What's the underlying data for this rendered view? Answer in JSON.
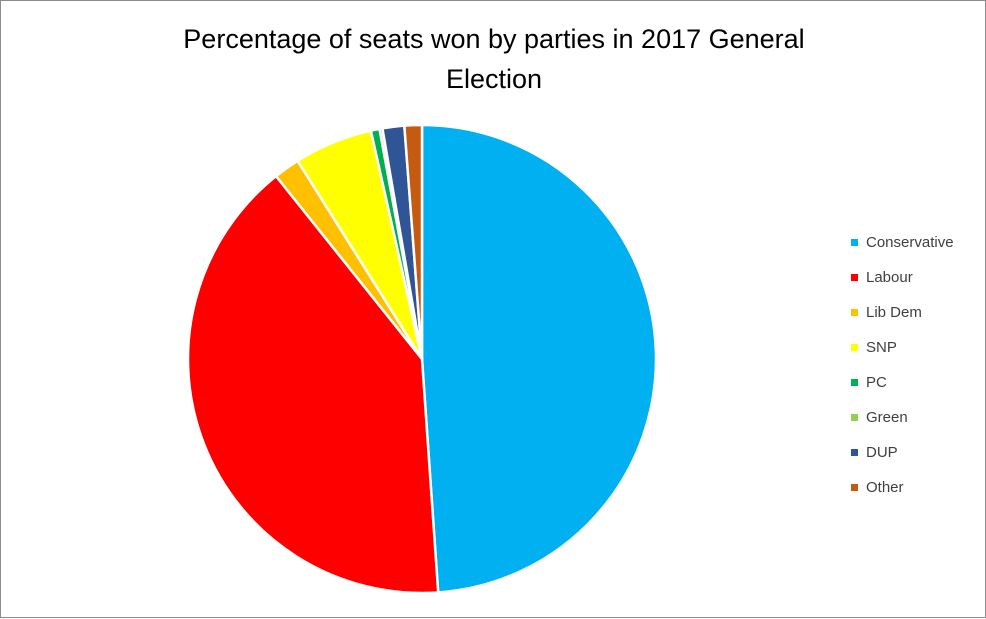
{
  "chart_data": {
    "type": "pie",
    "title_lines": [
      "Percentage of seats won by parties in 2017 General",
      "Election"
    ],
    "categories": [
      "Conservative",
      "Labour",
      "Lib Dem",
      "SNP",
      "PC",
      "Green",
      "DUP",
      "Other"
    ],
    "values": [
      48.8,
      40.3,
      1.8,
      5.4,
      0.6,
      0.2,
      1.5,
      1.2
    ],
    "colors": [
      "#00B0F0",
      "#FF0000",
      "#FFC000",
      "#FFFF00",
      "#00B050",
      "#92D050",
      "#2F5597",
      "#C55A11"
    ],
    "legend_position": "right",
    "start_angle": "12 o'clock",
    "direction": "clockwise"
  }
}
